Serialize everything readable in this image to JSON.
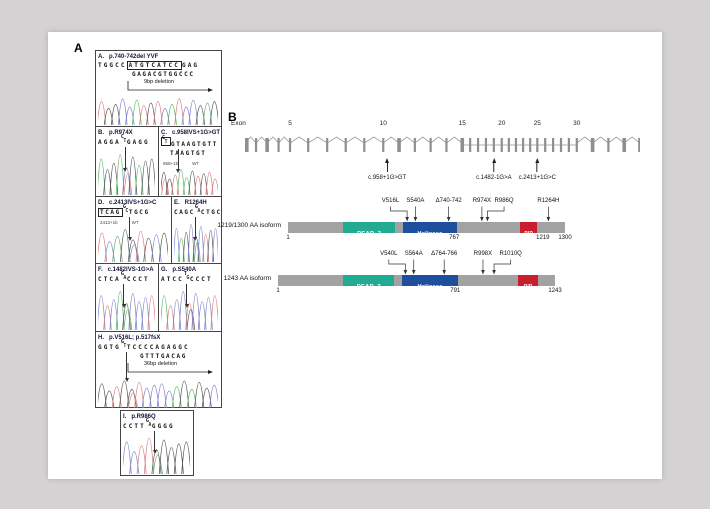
{
  "panels": {
    "a_label": "A",
    "b_label": "B"
  },
  "base_colors": {
    "A": "#5fb86a",
    "C": "#7d88cc",
    "G": "#5a5a5a",
    "T": "#de8181"
  },
  "chromatograms": [
    {
      "key": "A",
      "label": "A.",
      "title": "p.740-742del YVF",
      "seq": {
        "pre": "TGGCC",
        "box": "ATGTCATCC",
        "post": "GAG"
      },
      "seq_line2": "GAGACGTGGCCC",
      "annotation": "9bp deletion",
      "trace": [
        "T",
        "G",
        "G",
        "C",
        "C",
        "A",
        "T",
        "G",
        "T",
        "C",
        "A",
        "T",
        "C",
        "C",
        "G",
        "A",
        "G"
      ]
    },
    {
      "key": "B",
      "label": "B.",
      "title": "p.R974X",
      "seq": {
        "pre": "AGGA",
        "post": "GAGG"
      },
      "het": [
        "C",
        "T"
      ],
      "arrow_pct": 46,
      "trace": [
        "A",
        "G",
        "G",
        "A",
        "CT",
        "G",
        "A",
        "G",
        "G"
      ]
    },
    {
      "key": "C",
      "label": "C.",
      "title": "c.958IVS+1G>GT",
      "seq": {
        "post": "GTAAGTGTT"
      },
      "het": [
        "G",
        "T"
      ],
      "het_boxed": true,
      "seq_line2": "TAAGTGT",
      "sub_labels": [
        "958+1b",
        "WT"
      ],
      "arrow_pct": 30,
      "trace": [
        "GT",
        "G",
        "T",
        "A",
        "A",
        "G",
        "T",
        "G",
        "T",
        "T"
      ]
    },
    {
      "key": "D",
      "label": "D.",
      "title": "c.2413IVS+1G>C",
      "seq": {
        "pre": "TCAG",
        "post": "TGCG"
      },
      "pre_boxed": true,
      "het": [
        "G",
        "C"
      ],
      "sub_labels": [
        "2413+1b",
        "WT"
      ],
      "arrow_pct": 44,
      "trace": [
        "T",
        "C",
        "A",
        "G",
        "GC",
        "T",
        "G",
        "C",
        "G"
      ]
    },
    {
      "key": "E",
      "label": "E.",
      "title": "R1264H",
      "seq": {
        "pre": "CAGC",
        "post": "CTGC"
      },
      "het": [
        "G",
        "A"
      ],
      "arrow_pct": 46,
      "trace": [
        "C",
        "A",
        "G",
        "C",
        "GA",
        "C",
        "T",
        "G",
        "C"
      ]
    },
    {
      "key": "F",
      "label": "F.",
      "title": "c.1482IVS-1G>A",
      "seq": {
        "pre": "CTCA",
        "post": "CCCT"
      },
      "het": [
        "G",
        "A"
      ],
      "arrow_pct": 44,
      "trace": [
        "C",
        "T",
        "C",
        "A",
        "GA",
        "C",
        "C",
        "C",
        "T"
      ]
    },
    {
      "key": "G",
      "label": "G.",
      "title": "p.S540A",
      "seq": {
        "pre": "ATCC",
        "post": "CCCT"
      },
      "het": [
        "T",
        "G"
      ],
      "arrow_pct": 44,
      "trace": [
        "A",
        "T",
        "C",
        "C",
        "TG",
        "C",
        "C",
        "C",
        "T"
      ]
    },
    {
      "key": "H",
      "label": "H.",
      "title": "p.V516L; p.517fsX",
      "seq": {
        "pre": "GGTG",
        "post": "TCCCCAGAGGC"
      },
      "het": [
        "G",
        "T"
      ],
      "seq_line2": "GTTTGACAG",
      "annotation": "36bp deletion",
      "arrow_pct": 24,
      "trace": [
        "G",
        "G",
        "T",
        "G",
        "GT",
        "T",
        "C",
        "C",
        "C",
        "C",
        "A",
        "G",
        "A",
        "G",
        "G",
        "C"
      ]
    },
    {
      "key": "I",
      "label": "I.",
      "title": "p.R986Q",
      "seq": {
        "pre": "CCTT",
        "post": "GGGG"
      },
      "het": [
        "G",
        "A"
      ],
      "arrow_pct": 46,
      "trace": [
        "C",
        "C",
        "T",
        "T",
        "GA",
        "G",
        "G",
        "G",
        "G"
      ]
    }
  ],
  "exon_diagram": {
    "axis_label": "Exon",
    "tick_labels": [
      {
        "n": "5",
        "pct": 11.4
      },
      {
        "n": "10",
        "pct": 35
      },
      {
        "n": "15",
        "pct": 55
      },
      {
        "n": "20",
        "pct": 65
      },
      {
        "n": "25",
        "pct": 74
      },
      {
        "n": "30",
        "pct": 84
      }
    ],
    "exon_positions": [
      0,
      2.8,
      5.6,
      8.5,
      11.4,
      16,
      20.8,
      25.5,
      30.2,
      35,
      39,
      43,
      47,
      51,
      55,
      57,
      59,
      61,
      63,
      65,
      66.8,
      68.6,
      70.4,
      72.2,
      74,
      76,
      78,
      80,
      82,
      84,
      88,
      92,
      96,
      100
    ],
    "wide_indices": [
      0,
      2,
      10,
      14,
      30,
      32,
      33
    ],
    "splice_mutations": [
      {
        "label": "c.958+1G>GT",
        "pct": 36
      },
      {
        "label": "c.1482-1G>A",
        "pct": 63
      },
      {
        "label": "c.2413+1G>C",
        "pct": 74
      }
    ],
    "color": "#9b9b9b"
  },
  "isoforms": [
    {
      "name": "1219/1300 AA isoform",
      "domains": [
        {
          "label": "DEAD_2",
          "start_pct": 20,
          "end_pct": 38.6,
          "color": "#23ab92"
        },
        {
          "label": "Helicase",
          "start_pct": 41.5,
          "end_pct": 61,
          "color": "#1d4f9c"
        },
        {
          "label": "PIP",
          "start_pct": 83.8,
          "end_pct": 90,
          "color": "#c81e2e"
        }
      ],
      "mutations": [
        {
          "label": "V516L",
          "label_pct": 37,
          "target_pct": 43,
          "elbow": "right"
        },
        {
          "label": "S540A",
          "label_pct": 46,
          "target_pct": 46
        },
        {
          "label": "Δ740-742",
          "label_pct": 58,
          "target_pct": 58
        },
        {
          "label": "R974X",
          "label_pct": 70,
          "target_pct": 70
        },
        {
          "label": "R986Q",
          "label_pct": 78,
          "target_pct": 72,
          "elbow": "left"
        },
        {
          "label": "R1264H",
          "label_pct": 94,
          "target_pct": 94
        }
      ],
      "positions": [
        {
          "v": "1",
          "pct": 0
        },
        {
          "v": "767",
          "pct": 60
        },
        {
          "v": "1219",
          "pct": 92
        },
        {
          "v": "1300",
          "pct": 100
        }
      ]
    },
    {
      "name": "1243 AA isoform",
      "domains": [
        {
          "label": "DEAD_2",
          "start_pct": 23.5,
          "end_pct": 42,
          "color": "#23ab92"
        },
        {
          "label": "Helicase",
          "start_pct": 44.8,
          "end_pct": 65,
          "color": "#1d4f9c"
        },
        {
          "label": "PIP",
          "start_pct": 86.6,
          "end_pct": 94,
          "color": "#c81e2e"
        }
      ],
      "mutations": [
        {
          "label": "V540L",
          "label_pct": 40,
          "target_pct": 46,
          "elbow": "right"
        },
        {
          "label": "S564A",
          "label_pct": 49,
          "target_pct": 49
        },
        {
          "label": "Δ764-766",
          "label_pct": 60,
          "target_pct": 60
        },
        {
          "label": "R998X",
          "label_pct": 74,
          "target_pct": 74
        },
        {
          "label": "R1010Q",
          "label_pct": 84,
          "target_pct": 78,
          "elbow": "left"
        }
      ],
      "positions": [
        {
          "v": "1",
          "pct": 0
        },
        {
          "v": "791",
          "pct": 64
        },
        {
          "v": "1243",
          "pct": 100
        }
      ]
    }
  ]
}
